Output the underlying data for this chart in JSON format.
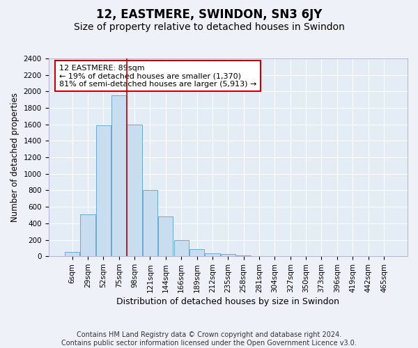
{
  "title": "12, EASTMERE, SWINDON, SN3 6JY",
  "subtitle": "Size of property relative to detached houses in Swindon",
  "xlabel": "Distribution of detached houses by size in Swindon",
  "ylabel": "Number of detached properties",
  "footer_line1": "Contains HM Land Registry data © Crown copyright and database right 2024.",
  "footer_line2": "Contains public sector information licensed under the Open Government Licence v3.0.",
  "categories": [
    "6sqm",
    "29sqm",
    "52sqm",
    "75sqm",
    "98sqm",
    "121sqm",
    "144sqm",
    "166sqm",
    "189sqm",
    "212sqm",
    "235sqm",
    "258sqm",
    "281sqm",
    "304sqm",
    "327sqm",
    "350sqm",
    "373sqm",
    "396sqm",
    "419sqm",
    "442sqm",
    "465sqm"
  ],
  "values": [
    50,
    510,
    1590,
    1950,
    1600,
    800,
    480,
    200,
    90,
    35,
    25,
    10,
    2,
    0,
    0,
    0,
    0,
    0,
    0,
    0,
    0
  ],
  "bar_color": "#c9ddf0",
  "bar_edge_color": "#6aaad4",
  "vline_x_index": 3.5,
  "vline_color": "#cc0000",
  "annotation_text": "12 EASTMERE: 89sqm\n← 19% of detached houses are smaller (1,370)\n81% of semi-detached houses are larger (5,913) →",
  "annotation_box_color": "white",
  "annotation_box_edge": "#cc0000",
  "ylim": [
    0,
    2400
  ],
  "yticks": [
    0,
    200,
    400,
    600,
    800,
    1000,
    1200,
    1400,
    1600,
    1800,
    2000,
    2200,
    2400
  ],
  "background_color": "#eef2f8",
  "plot_bg_color": "#e4ecf5",
  "grid_color": "white",
  "title_fontsize": 12,
  "subtitle_fontsize": 10,
  "xlabel_fontsize": 9,
  "ylabel_fontsize": 8.5,
  "tick_fontsize": 7.5,
  "annotation_fontsize": 8,
  "footer_fontsize": 7
}
